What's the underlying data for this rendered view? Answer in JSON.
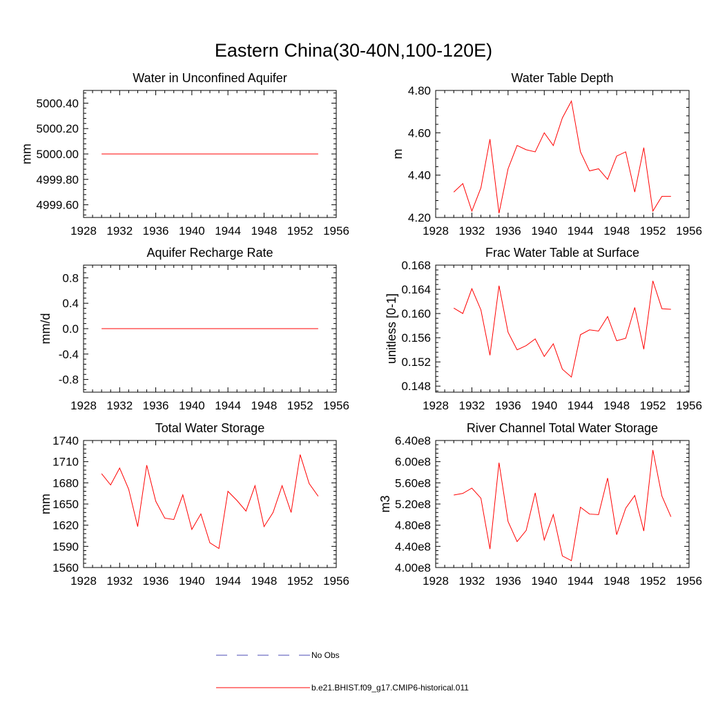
{
  "figure": {
    "title": "Eastern China(30-40N,100-120E)"
  },
  "legend": {
    "placement": "bottom-center",
    "entries": [
      {
        "label": "No Obs",
        "color": "#4a4ab4",
        "style": "dashed"
      },
      {
        "label": "b.e21.BHIST.f09_g17.CMIP6-historical.011",
        "color": "#ff0000",
        "style": "solid"
      }
    ]
  },
  "chart_data": [
    {
      "type": "line",
      "title": "Water in Unconfined Aquifer",
      "ylabel": "mm",
      "xlim": [
        1928,
        1956
      ],
      "ylim": [
        4999.5,
        5000.5
      ],
      "xticks": [
        "1928",
        "1932",
        "1936",
        "1940",
        "1944",
        "1948",
        "1952",
        "1956"
      ],
      "yticks": [
        "4999.60",
        "4999.80",
        "5000.00",
        "5000.20",
        "5000.40"
      ],
      "x": [
        1930,
        1931,
        1932,
        1933,
        1934,
        1935,
        1936,
        1937,
        1938,
        1939,
        1940,
        1941,
        1942,
        1943,
        1944,
        1945,
        1946,
        1947,
        1948,
        1949,
        1950,
        1951,
        1952,
        1953,
        1954
      ],
      "series": [
        {
          "name": "b.e21.BHIST.f09_g17.CMIP6-historical.011",
          "color": "#ff0000",
          "values": [
            5000,
            5000,
            5000,
            5000,
            5000,
            5000,
            5000,
            5000,
            5000,
            5000,
            5000,
            5000,
            5000,
            5000,
            5000,
            5000,
            5000,
            5000,
            5000,
            5000,
            5000,
            5000,
            5000,
            5000,
            5000
          ]
        }
      ]
    },
    {
      "type": "line",
      "title": "Water Table Depth",
      "ylabel": "m",
      "xlim": [
        1928,
        1956
      ],
      "ylim": [
        4.2,
        4.8
      ],
      "xticks": [
        "1928",
        "1932",
        "1936",
        "1940",
        "1944",
        "1948",
        "1952",
        "1956"
      ],
      "yticks": [
        "4.20",
        "4.40",
        "4.60",
        "4.80"
      ],
      "x": [
        1930,
        1931,
        1932,
        1933,
        1934,
        1935,
        1936,
        1937,
        1938,
        1939,
        1940,
        1941,
        1942,
        1943,
        1944,
        1945,
        1946,
        1947,
        1948,
        1949,
        1950,
        1951,
        1952,
        1953,
        1954
      ],
      "series": [
        {
          "name": "b.e21.BHIST.f09_g17.CMIP6-historical.011",
          "color": "#ff0000",
          "values": [
            4.32,
            4.36,
            4.23,
            4.34,
            4.57,
            4.22,
            4.43,
            4.54,
            4.52,
            4.51,
            4.6,
            4.54,
            4.67,
            4.75,
            4.51,
            4.42,
            4.43,
            4.38,
            4.49,
            4.51,
            4.32,
            4.53,
            4.23,
            4.3,
            4.3
          ]
        }
      ]
    },
    {
      "type": "line",
      "title": "Aquifer Recharge Rate",
      "ylabel": "mm/d",
      "xlim": [
        1928,
        1956
      ],
      "ylim": [
        -1.0,
        1.0
      ],
      "xticks": [
        "1928",
        "1932",
        "1936",
        "1940",
        "1944",
        "1948",
        "1952",
        "1956"
      ],
      "yticks": [
        "-0.8",
        "-0.4",
        "0.0",
        "0.4",
        "0.8"
      ],
      "x": [
        1930,
        1931,
        1932,
        1933,
        1934,
        1935,
        1936,
        1937,
        1938,
        1939,
        1940,
        1941,
        1942,
        1943,
        1944,
        1945,
        1946,
        1947,
        1948,
        1949,
        1950,
        1951,
        1952,
        1953,
        1954
      ],
      "series": [
        {
          "name": "b.e21.BHIST.f09_g17.CMIP6-historical.011",
          "color": "#ff0000",
          "values": [
            0,
            0,
            0,
            0,
            0,
            0,
            0,
            0,
            0,
            0,
            0,
            0,
            0,
            0,
            0,
            0,
            0,
            0,
            0,
            0,
            0,
            0,
            0,
            0,
            0
          ]
        }
      ]
    },
    {
      "type": "line",
      "title": "Frac Water Table at Surface",
      "ylabel": "unitless [0-1]",
      "xlim": [
        1928,
        1956
      ],
      "ylim": [
        0.147,
        0.168
      ],
      "xticks": [
        "1928",
        "1932",
        "1936",
        "1940",
        "1944",
        "1948",
        "1952",
        "1956"
      ],
      "yticks": [
        "0.148",
        "0.152",
        "0.156",
        "0.160",
        "0.164",
        "0.168"
      ],
      "x": [
        1930,
        1931,
        1932,
        1933,
        1934,
        1935,
        1936,
        1937,
        1938,
        1939,
        1940,
        1941,
        1942,
        1943,
        1944,
        1945,
        1946,
        1947,
        1948,
        1949,
        1950,
        1951,
        1952,
        1953,
        1954
      ],
      "series": [
        {
          "name": "b.e21.BHIST.f09_g17.CMIP6-historical.011",
          "color": "#ff0000",
          "values": [
            0.1609,
            0.16,
            0.1641,
            0.1606,
            0.1531,
            0.1646,
            0.1569,
            0.154,
            0.1547,
            0.1558,
            0.1529,
            0.155,
            0.1508,
            0.1495,
            0.1565,
            0.1573,
            0.1571,
            0.1595,
            0.1555,
            0.1559,
            0.161,
            0.1541,
            0.1654,
            0.1608,
            0.1607
          ]
        }
      ]
    },
    {
      "type": "line",
      "title": "Total Water Storage",
      "ylabel": "mm",
      "xlim": [
        1928,
        1956
      ],
      "ylim": [
        1560,
        1740
      ],
      "xticks": [
        "1928",
        "1932",
        "1936",
        "1940",
        "1944",
        "1948",
        "1952",
        "1956"
      ],
      "yticks": [
        "1560",
        "1590",
        "1620",
        "1650",
        "1680",
        "1710",
        "1740"
      ],
      "x": [
        1930,
        1931,
        1932,
        1933,
        1934,
        1935,
        1936,
        1937,
        1938,
        1939,
        1940,
        1941,
        1942,
        1943,
        1944,
        1945,
        1946,
        1947,
        1948,
        1949,
        1950,
        1951,
        1952,
        1953,
        1954
      ],
      "series": [
        {
          "name": "b.e21.BHIST.f09_g17.CMIP6-historical.011",
          "color": "#ff0000",
          "values": [
            1693,
            1677,
            1701,
            1671,
            1618,
            1705,
            1654,
            1630,
            1628,
            1663,
            1614,
            1636,
            1595,
            1587,
            1668,
            1655,
            1640,
            1676,
            1618,
            1638,
            1676,
            1638,
            1720,
            1679,
            1661
          ]
        }
      ]
    },
    {
      "type": "line",
      "title": "River Channel Total Water Storage",
      "ylabel": "m3",
      "xlim": [
        1928,
        1956
      ],
      "ylim": [
        400000000,
        640000000
      ],
      "xticks": [
        "1928",
        "1932",
        "1936",
        "1940",
        "1944",
        "1948",
        "1952",
        "1956"
      ],
      "yticks": [
        "4.00e8",
        "4.40e8",
        "4.80e8",
        "5.20e8",
        "5.60e8",
        "6.00e8",
        "6.40e8"
      ],
      "x": [
        1930,
        1931,
        1932,
        1933,
        1934,
        1935,
        1936,
        1937,
        1938,
        1939,
        1940,
        1941,
        1942,
        1943,
        1944,
        1945,
        1946,
        1947,
        1948,
        1949,
        1950,
        1951,
        1952,
        1953,
        1954
      ],
      "series": [
        {
          "name": "b.e21.BHIST.f09_g17.CMIP6-historical.011",
          "color": "#ff0000",
          "values": [
            537000000,
            540000000,
            550000000,
            531000000,
            435000000,
            598000000,
            487000000,
            449000000,
            470000000,
            541000000,
            452000000,
            500000000,
            422000000,
            413000000,
            514000000,
            501000000,
            500000000,
            569000000,
            462000000,
            512000000,
            536000000,
            469000000,
            622000000,
            535000000,
            496000000
          ]
        }
      ]
    }
  ]
}
